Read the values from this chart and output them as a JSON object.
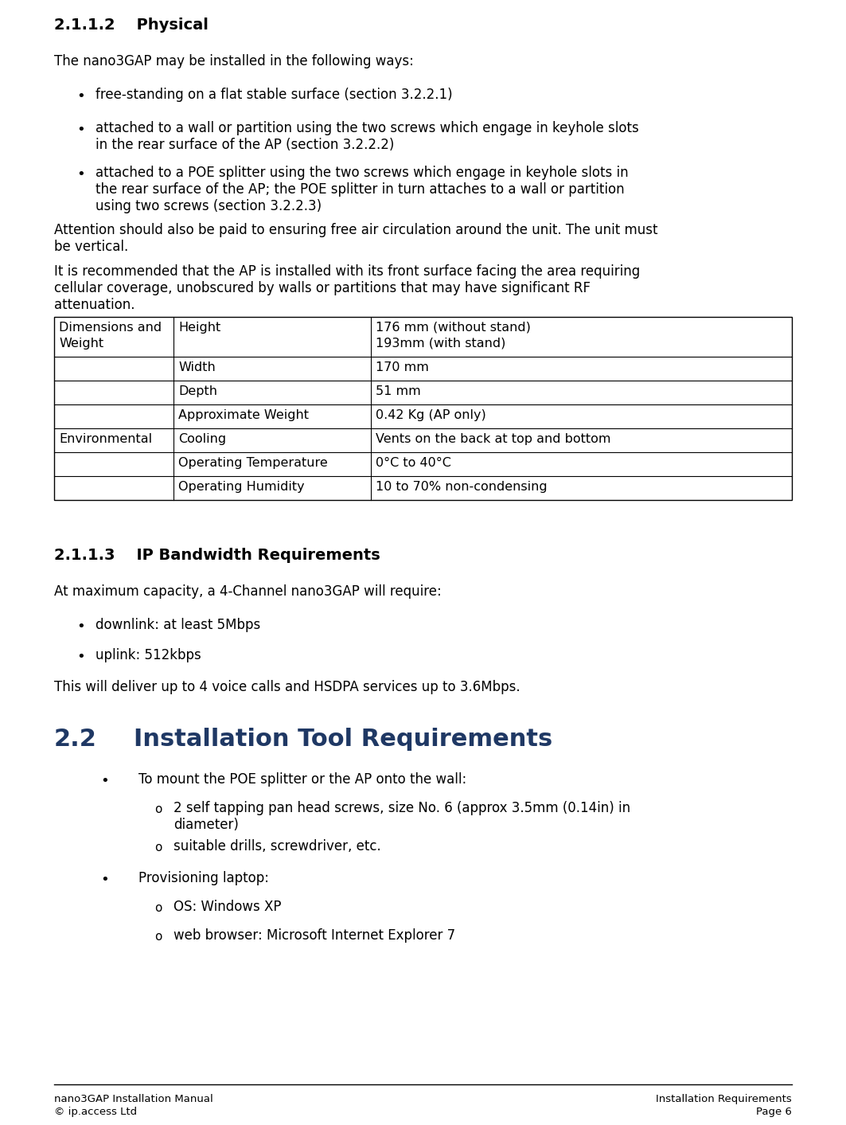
{
  "bg_color": "#ffffff",
  "text_color": "#000000",
  "section_heading": "2.1.1.2    Physical",
  "para1": "The nano3GAP may be installed in the following ways:",
  "bullet1_1": "free-standing on a flat stable surface (section 3.2.2.1)",
  "bullet1_2": "attached to a wall or partition using the two screws which engage in keyhole slots\nin the rear surface of the AP (section 3.2.2.2)",
  "bullet1_3": "attached to a POE splitter using the two screws which engage in keyhole slots in\nthe rear surface of the AP; the POE splitter in turn attaches to a wall or partition\nusing two screws (section 3.2.2.3)",
  "para2": "Attention should also be paid to ensuring free air circulation around the unit. The unit must\nbe vertical.",
  "para3": "It is recommended that the AP is installed with its front surface facing the area requiring\ncellular coverage, unobscured by walls or partitions that may have significant RF\nattenuation.",
  "table_rows": [
    [
      "Dimensions and\nWeight",
      "Height",
      "176 mm (without stand)\n193mm (with stand)"
    ],
    [
      "",
      "Width",
      "170 mm"
    ],
    [
      "",
      "Depth",
      "51 mm"
    ],
    [
      "",
      "Approximate Weight",
      "0.42 Kg (AP only)"
    ],
    [
      "Environmental",
      "Cooling",
      "Vents on the back at top and bottom"
    ],
    [
      "",
      "Operating Temperature",
      "0°C to 40°C"
    ],
    [
      "",
      "Operating Humidity",
      "10 to 70% non-condensing"
    ]
  ],
  "section2_heading": "2.1.1.3    IP Bandwidth Requirements",
  "para4": "At maximum capacity, a 4-Channel nano3GAP will require:",
  "bullet2_1": "downlink: at least 5Mbps",
  "bullet2_2": "uplink: 512kbps",
  "para5": "This will deliver up to 4 voice calls and HSDPA services up to 3.6Mbps.",
  "section3_num": "2.2",
  "section3_heading": "Installation Tool Requirements",
  "section3_color": "#1F3864",
  "bullet3_1": "To mount the POE splitter or the AP onto the wall:",
  "sub3_1": "2 self tapping pan head screws, size No. 6 (approx 3.5mm (0.14in) in\ndiameter)",
  "sub3_2": "suitable drills, screwdriver, etc.",
  "bullet3_2": "Provisioning laptop:",
  "sub4_1": "OS: Windows XP",
  "sub4_2": "web browser: Microsoft Internet Explorer 7",
  "footer_left1": "nano3GAP Installation Manual",
  "footer_left2": "© ip.access Ltd",
  "footer_right1": "Installation Requirements",
  "footer_right2": "Page 6"
}
